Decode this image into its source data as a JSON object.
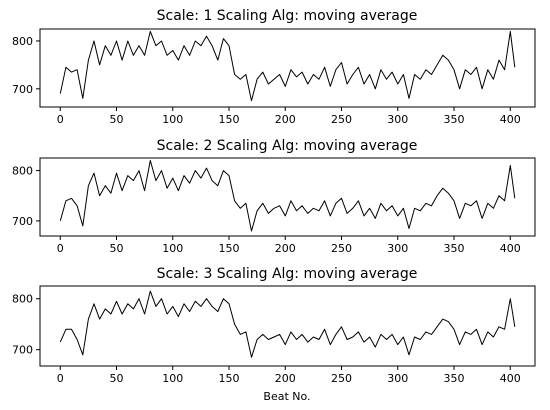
{
  "chart_data": [
    {
      "type": "line",
      "title": "Scale: 1 Scaling Alg: moving average",
      "xlabel": "",
      "ylabel": "",
      "xlim": [
        -18,
        422
      ],
      "ylim": [
        662,
        825
      ],
      "xticks": [
        0,
        50,
        100,
        150,
        200,
        250,
        300,
        350,
        400
      ],
      "yticks": [
        700,
        800
      ],
      "grid": false,
      "series": [
        {
          "x": [
            0,
            5,
            10,
            15,
            20,
            25,
            30,
            35,
            40,
            45,
            50,
            55,
            60,
            65,
            70,
            75,
            80,
            85,
            90,
            95,
            100,
            105,
            110,
            115,
            120,
            125,
            130,
            135,
            140,
            145,
            150,
            155,
            160,
            165,
            170,
            175,
            180,
            185,
            190,
            195,
            200,
            205,
            210,
            215,
            220,
            225,
            230,
            235,
            240,
            245,
            250,
            255,
            260,
            265,
            270,
            275,
            280,
            285,
            290,
            295,
            300,
            305,
            310,
            315,
            320,
            325,
            330,
            335,
            340,
            345,
            350,
            355,
            360,
            365,
            370,
            375,
            380,
            385,
            390,
            395,
            400,
            404
          ],
          "values": [
            690,
            745,
            735,
            740,
            680,
            760,
            800,
            750,
            790,
            770,
            800,
            760,
            800,
            770,
            790,
            770,
            820,
            790,
            800,
            770,
            780,
            760,
            790,
            770,
            800,
            790,
            810,
            790,
            760,
            805,
            790,
            730,
            720,
            730,
            675,
            720,
            735,
            710,
            720,
            730,
            705,
            740,
            725,
            735,
            710,
            730,
            720,
            745,
            705,
            740,
            755,
            710,
            730,
            745,
            710,
            730,
            700,
            740,
            720,
            735,
            710,
            730,
            680,
            730,
            720,
            740,
            730,
            750,
            770,
            760,
            740,
            700,
            740,
            730,
            745,
            700,
            740,
            720,
            760,
            740,
            820,
            745
          ]
        }
      ]
    },
    {
      "type": "line",
      "title": "Scale: 2 Scaling Alg: moving average",
      "xlabel": "",
      "ylabel": "",
      "xlim": [
        -18,
        422
      ],
      "ylim": [
        670,
        825
      ],
      "xticks": [
        0,
        50,
        100,
        150,
        200,
        250,
        300,
        350,
        400
      ],
      "yticks": [
        700,
        800
      ],
      "grid": false,
      "series": [
        {
          "x": [
            0,
            5,
            10,
            15,
            20,
            25,
            30,
            35,
            40,
            45,
            50,
            55,
            60,
            65,
            70,
            75,
            80,
            85,
            90,
            95,
            100,
            105,
            110,
            115,
            120,
            125,
            130,
            135,
            140,
            145,
            150,
            155,
            160,
            165,
            170,
            175,
            180,
            185,
            190,
            195,
            200,
            205,
            210,
            215,
            220,
            225,
            230,
            235,
            240,
            245,
            250,
            255,
            260,
            265,
            270,
            275,
            280,
            285,
            290,
            295,
            300,
            305,
            310,
            315,
            320,
            325,
            330,
            335,
            340,
            345,
            350,
            355,
            360,
            365,
            370,
            375,
            380,
            385,
            390,
            395,
            400,
            404
          ],
          "values": [
            700,
            740,
            745,
            730,
            690,
            770,
            795,
            750,
            770,
            755,
            795,
            760,
            790,
            780,
            800,
            760,
            820,
            780,
            800,
            765,
            785,
            760,
            790,
            775,
            800,
            785,
            805,
            780,
            770,
            800,
            790,
            740,
            725,
            735,
            680,
            720,
            735,
            715,
            725,
            730,
            710,
            740,
            720,
            730,
            715,
            725,
            720,
            740,
            710,
            735,
            745,
            715,
            725,
            740,
            710,
            725,
            705,
            735,
            720,
            730,
            710,
            725,
            685,
            725,
            720,
            735,
            730,
            750,
            765,
            755,
            740,
            705,
            735,
            730,
            740,
            705,
            735,
            725,
            750,
            740,
            810,
            745
          ]
        }
      ]
    },
    {
      "type": "line",
      "title": "Scale: 3 Scaling Alg: moving average",
      "xlabel": "Beat No.",
      "ylabel": "",
      "xlim": [
        -18,
        422
      ],
      "ylim": [
        668,
        825
      ],
      "xticks": [
        0,
        50,
        100,
        150,
        200,
        250,
        300,
        350,
        400
      ],
      "yticks": [
        700,
        800
      ],
      "grid": false,
      "series": [
        {
          "x": [
            0,
            5,
            10,
            15,
            20,
            25,
            30,
            35,
            40,
            45,
            50,
            55,
            60,
            65,
            70,
            75,
            80,
            85,
            90,
            95,
            100,
            105,
            110,
            115,
            120,
            125,
            130,
            135,
            140,
            145,
            150,
            155,
            160,
            165,
            170,
            175,
            180,
            185,
            190,
            195,
            200,
            205,
            210,
            215,
            220,
            225,
            230,
            235,
            240,
            245,
            250,
            255,
            260,
            265,
            270,
            275,
            280,
            285,
            290,
            295,
            300,
            305,
            310,
            315,
            320,
            325,
            330,
            335,
            340,
            345,
            350,
            355,
            360,
            365,
            370,
            375,
            380,
            385,
            390,
            395,
            400,
            404
          ],
          "values": [
            715,
            740,
            740,
            720,
            690,
            760,
            790,
            760,
            780,
            770,
            795,
            770,
            790,
            780,
            800,
            770,
            815,
            785,
            800,
            770,
            785,
            765,
            790,
            775,
            795,
            785,
            800,
            785,
            775,
            800,
            790,
            750,
            730,
            735,
            685,
            720,
            730,
            720,
            725,
            730,
            710,
            735,
            720,
            730,
            715,
            725,
            720,
            740,
            710,
            730,
            745,
            720,
            725,
            735,
            715,
            725,
            705,
            730,
            720,
            730,
            710,
            725,
            690,
            725,
            720,
            735,
            730,
            745,
            760,
            755,
            740,
            710,
            735,
            730,
            740,
            710,
            735,
            725,
            745,
            740,
            800,
            745
          ]
        }
      ]
    }
  ]
}
